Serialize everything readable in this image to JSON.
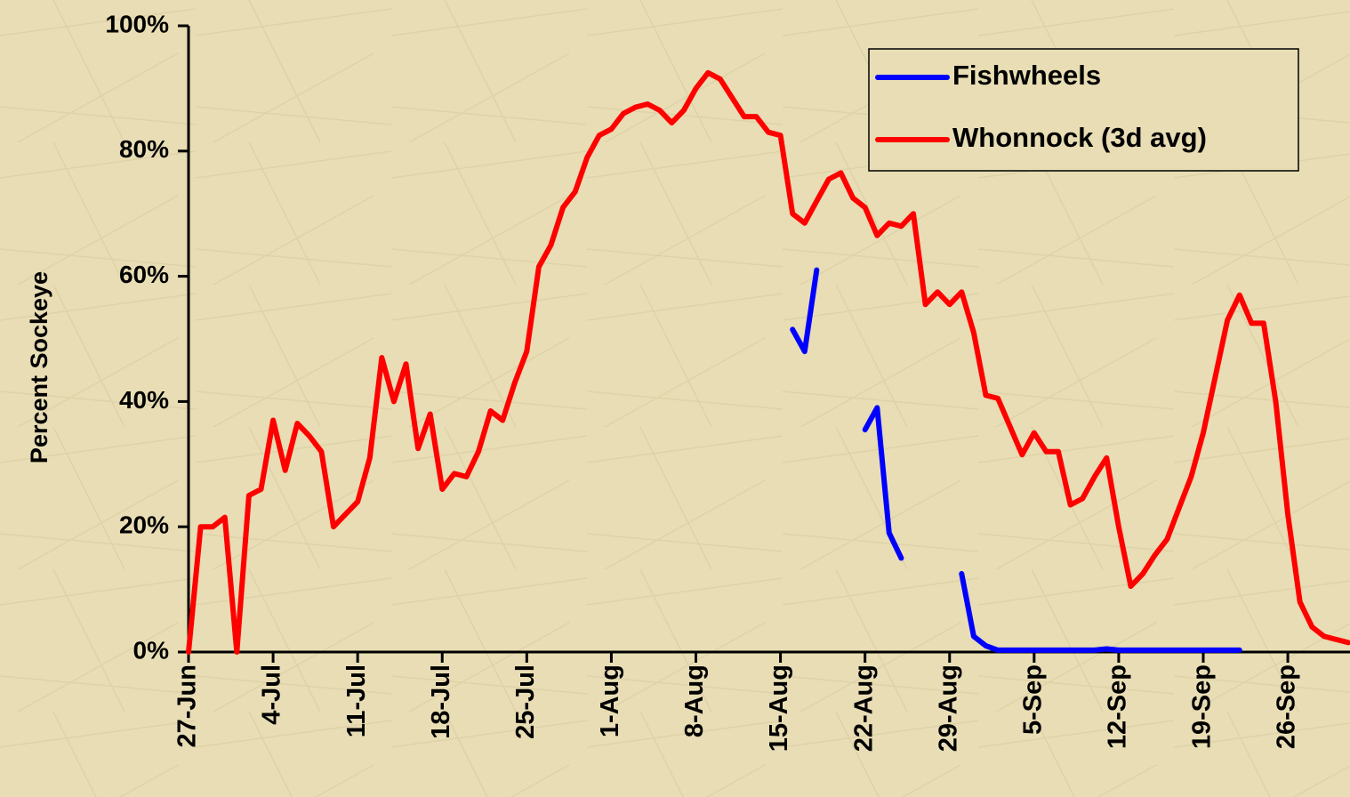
{
  "chart_data": {
    "type": "line",
    "y_label": "Percent Sockeye",
    "categories": [
      "27-Jun",
      null,
      null,
      null,
      null,
      null,
      null,
      "4-Jul",
      null,
      null,
      null,
      null,
      null,
      null,
      "11-Jul",
      null,
      null,
      null,
      null,
      null,
      null,
      "18-Jul",
      null,
      null,
      null,
      null,
      null,
      null,
      "25-Jul",
      null,
      null,
      null,
      null,
      null,
      null,
      "1-Aug",
      null,
      null,
      null,
      null,
      null,
      null,
      "8-Aug",
      null,
      null,
      null,
      null,
      null,
      null,
      "15-Aug",
      null,
      null,
      null,
      null,
      null,
      null,
      "22-Aug",
      null,
      null,
      null,
      null,
      null,
      null,
      "29-Aug",
      null,
      null,
      null,
      null,
      null,
      null,
      "5-Sep",
      null,
      null,
      null,
      null,
      null,
      null,
      "12-Sep",
      null,
      null,
      null,
      null,
      null,
      null,
      "19-Sep",
      null,
      null,
      null,
      null,
      null,
      null,
      "26-Sep",
      null,
      null,
      null,
      null,
      null
    ],
    "series": [
      {
        "name": "Fishwheels",
        "color": "#0000ff",
        "values": [
          null,
          null,
          null,
          null,
          null,
          null,
          null,
          null,
          null,
          null,
          null,
          null,
          null,
          null,
          null,
          null,
          null,
          null,
          null,
          null,
          null,
          null,
          null,
          null,
          null,
          null,
          null,
          null,
          null,
          null,
          null,
          null,
          null,
          null,
          null,
          null,
          null,
          null,
          null,
          null,
          null,
          null,
          null,
          null,
          null,
          null,
          null,
          null,
          null,
          null,
          51.5,
          48,
          61,
          null,
          null,
          null,
          35.5,
          39,
          19,
          15,
          null,
          null,
          null,
          null,
          12.5,
          2.5,
          1,
          0.3,
          0.3,
          0.3,
          0.3,
          0.3,
          0.3,
          0.3,
          0.3,
          0.3,
          0.5,
          0.3,
          0.3,
          0.3,
          0.3,
          0.3,
          0.3,
          0.3,
          0.3,
          0.3,
          0.3,
          0.3,
          null,
          null,
          null,
          null,
          null,
          null,
          null,
          null,
          null
        ]
      },
      {
        "name": "Whonnock (3d avg)",
        "color": "#ff0000",
        "values": [
          0,
          20,
          20,
          21.5,
          0,
          25,
          26,
          37,
          29,
          36.5,
          34.5,
          32,
          20,
          22,
          24,
          31,
          47,
          40,
          46,
          32.5,
          38,
          26,
          28.5,
          28,
          32,
          38.5,
          37,
          43,
          48,
          61.5,
          65,
          71,
          73.5,
          79,
          82.5,
          83.5,
          86,
          87,
          87.5,
          86.5,
          84.5,
          86.5,
          90,
          92.5,
          91.5,
          88.5,
          85.5,
          85.5,
          83,
          82.5,
          70,
          68.5,
          72,
          75.5,
          76.5,
          72.5,
          71,
          66.5,
          68.5,
          68,
          70,
          55.5,
          57.5,
          55.5,
          57.5,
          51,
          41,
          40.5,
          36,
          31.5,
          35,
          32,
          32,
          23.5,
          24.5,
          28,
          31,
          20,
          10.5,
          12.5,
          15.5,
          18,
          23,
          28,
          35,
          44,
          53,
          57,
          52.5,
          52.5,
          40,
          22,
          8,
          4,
          2.5,
          2,
          1.5
        ]
      }
    ],
    "ylim": [
      0,
      100
    ],
    "yticks": [
      {
        "value": 0,
        "label": "0%"
      },
      {
        "value": 20,
        "label": "20%"
      },
      {
        "value": 40,
        "label": "40%"
      },
      {
        "value": 60,
        "label": "60%"
      },
      {
        "value": 80,
        "label": "80%"
      },
      {
        "value": 100,
        "label": "100%"
      }
    ],
    "grid": false,
    "legend": "upper right"
  }
}
